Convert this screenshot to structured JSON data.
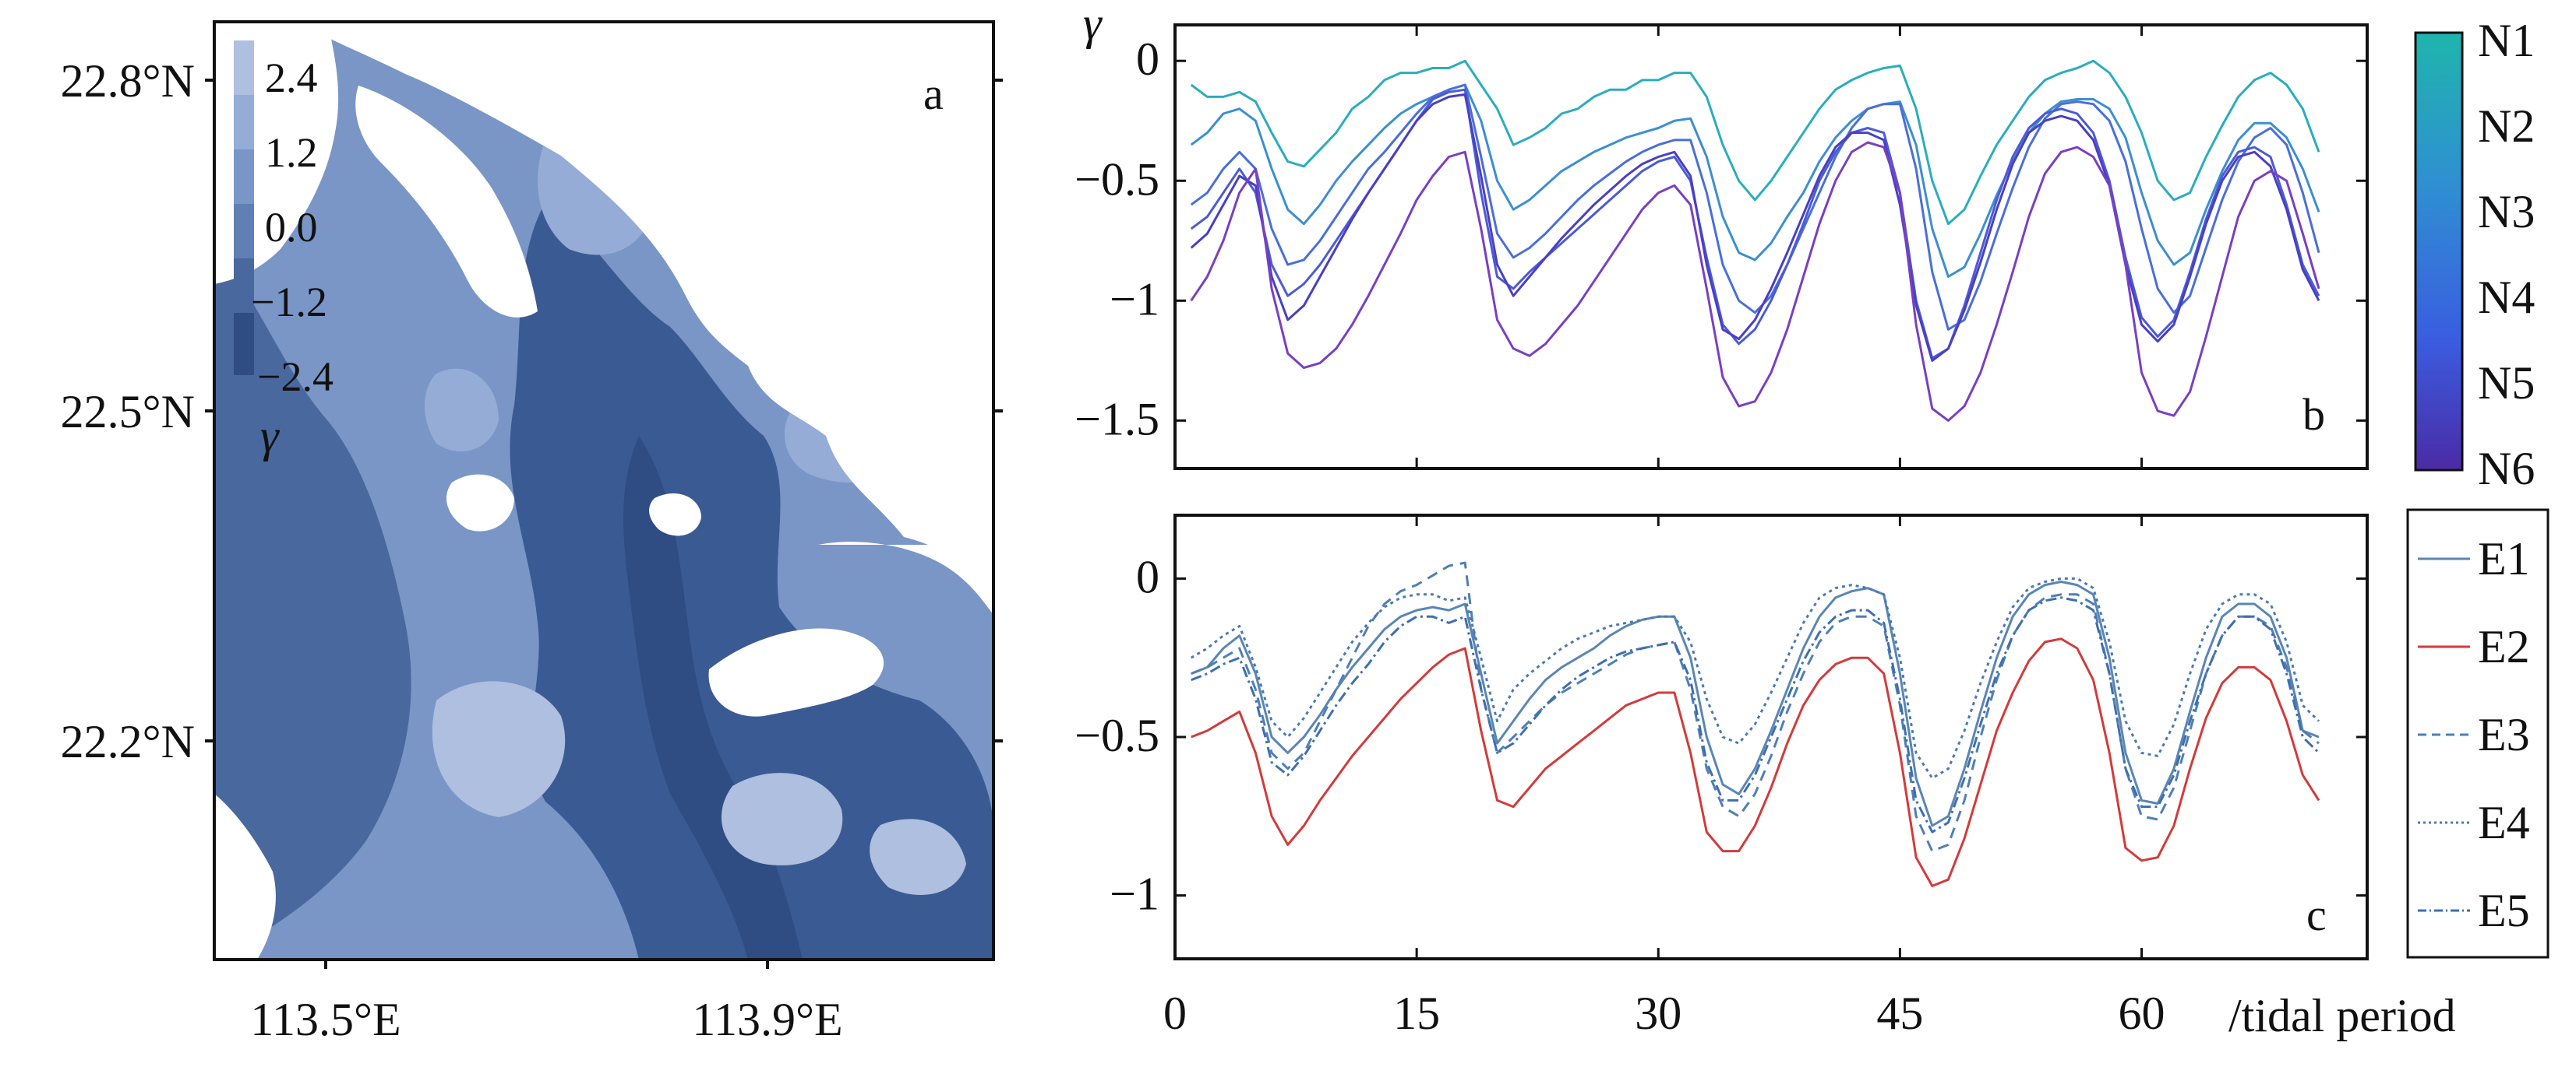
{
  "chart_data": [
    {
      "panel": "a",
      "type": "heatmap",
      "title": "",
      "x_ticks": [
        "113.5°E",
        "113.9°E"
      ],
      "y_ticks": [
        "22.8°N",
        "22.5°N",
        "22.2°N"
      ],
      "colorbar": {
        "label": "γ",
        "ticks": [
          "2.4",
          "1.2",
          "0.0",
          "−1.2",
          "−2.4"
        ],
        "range": [
          -2.4,
          2.4
        ],
        "colors": [
          "#aebfdf",
          "#94acd6",
          "#7a96c6",
          "#5f7fb5",
          "#49689e",
          "#2f4d82"
        ]
      },
      "colors": {
        "land": "#ffffff",
        "shallow": "#aebfdf",
        "mid": "#6f8dc2",
        "deep": "#3a5a93"
      }
    },
    {
      "panel": "b",
      "type": "line",
      "ylabel": "γ",
      "x_ticks": [
        "0",
        "15",
        "30",
        "45",
        "60"
      ],
      "xlim": [
        0,
        74
      ],
      "ylim": [
        -1.7,
        0.15
      ],
      "y_ticks": [
        {
          "value": 0,
          "label": "0"
        },
        {
          "value": -0.5,
          "label": "−0.5"
        },
        {
          "value": -1,
          "label": "−1"
        },
        {
          "value": -1.5,
          "label": "−1.5"
        }
      ],
      "colorbar": {
        "labels": [
          "N1",
          "N2",
          "N3",
          "N4",
          "N5",
          "N6"
        ],
        "top_color": "#1fb0b2",
        "bottom_color": "#4b2ba5"
      },
      "series": [
        {
          "name": "N1",
          "color": "#2aadbd",
          "values": [
            -0.1,
            -0.15,
            -0.15,
            -0.13,
            -0.17,
            -0.3,
            -0.42,
            -0.44,
            -0.37,
            -0.3,
            -0.2,
            -0.15,
            -0.08,
            -0.05,
            -0.05,
            -0.03,
            -0.03,
            0.0,
            -0.1,
            -0.2,
            -0.35,
            -0.32,
            -0.28,
            -0.22,
            -0.2,
            -0.15,
            -0.12,
            -0.12,
            -0.08,
            -0.08,
            -0.05,
            -0.05,
            -0.15,
            -0.35,
            -0.5,
            -0.58,
            -0.5,
            -0.4,
            -0.3,
            -0.2,
            -0.12,
            -0.08,
            -0.05,
            -0.03,
            -0.02,
            -0.2,
            -0.5,
            -0.68,
            -0.62,
            -0.48,
            -0.35,
            -0.25,
            -0.15,
            -0.08,
            -0.05,
            -0.03,
            0.0,
            -0.05,
            -0.15,
            -0.3,
            -0.5,
            -0.58,
            -0.55,
            -0.4,
            -0.27,
            -0.15,
            -0.08,
            -0.05,
            -0.1,
            -0.2,
            -0.38
          ]
        },
        {
          "name": "N2",
          "color": "#3c8fd0",
          "values": [
            -0.35,
            -0.3,
            -0.22,
            -0.2,
            -0.25,
            -0.45,
            -0.62,
            -0.68,
            -0.6,
            -0.5,
            -0.42,
            -0.35,
            -0.28,
            -0.22,
            -0.18,
            -0.15,
            -0.12,
            -0.1,
            -0.25,
            -0.5,
            -0.62,
            -0.58,
            -0.52,
            -0.46,
            -0.42,
            -0.38,
            -0.35,
            -0.32,
            -0.3,
            -0.28,
            -0.25,
            -0.24,
            -0.4,
            -0.65,
            -0.8,
            -0.83,
            -0.76,
            -0.65,
            -0.55,
            -0.42,
            -0.32,
            -0.25,
            -0.2,
            -0.18,
            -0.17,
            -0.35,
            -0.7,
            -0.9,
            -0.86,
            -0.72,
            -0.56,
            -0.42,
            -0.3,
            -0.22,
            -0.17,
            -0.16,
            -0.16,
            -0.2,
            -0.32,
            -0.55,
            -0.75,
            -0.85,
            -0.8,
            -0.62,
            -0.46,
            -0.33,
            -0.26,
            -0.26,
            -0.32,
            -0.45,
            -0.63
          ]
        },
        {
          "name": "N3",
          "color": "#4a6fd8",
          "values": [
            -0.6,
            -0.55,
            -0.45,
            -0.38,
            -0.45,
            -0.7,
            -0.85,
            -0.83,
            -0.75,
            -0.65,
            -0.55,
            -0.45,
            -0.38,
            -0.3,
            -0.22,
            -0.15,
            -0.12,
            -0.1,
            -0.4,
            -0.72,
            -0.82,
            -0.78,
            -0.72,
            -0.65,
            -0.58,
            -0.52,
            -0.47,
            -0.42,
            -0.38,
            -0.35,
            -0.33,
            -0.33,
            -0.55,
            -0.85,
            -1.0,
            -1.05,
            -0.98,
            -0.85,
            -0.7,
            -0.55,
            -0.4,
            -0.28,
            -0.2,
            -0.18,
            -0.18,
            -0.45,
            -0.88,
            -1.12,
            -1.08,
            -0.92,
            -0.72,
            -0.53,
            -0.36,
            -0.24,
            -0.18,
            -0.17,
            -0.18,
            -0.25,
            -0.42,
            -0.7,
            -0.95,
            -1.05,
            -0.98,
            -0.78,
            -0.58,
            -0.42,
            -0.32,
            -0.28,
            -0.35,
            -0.55,
            -0.8
          ]
        },
        {
          "name": "N4",
          "color": "#4b5bd6",
          "values": [
            -0.7,
            -0.65,
            -0.55,
            -0.45,
            -0.55,
            -0.85,
            -0.98,
            -0.93,
            -0.85,
            -0.75,
            -0.65,
            -0.55,
            -0.45,
            -0.35,
            -0.25,
            -0.16,
            -0.13,
            -0.12,
            -0.55,
            -0.9,
            -0.95,
            -0.88,
            -0.82,
            -0.76,
            -0.7,
            -0.64,
            -0.58,
            -0.52,
            -0.46,
            -0.42,
            -0.4,
            -0.5,
            -0.82,
            -1.1,
            -1.18,
            -1.12,
            -1.0,
            -0.85,
            -0.68,
            -0.5,
            -0.38,
            -0.3,
            -0.28,
            -0.3,
            -0.55,
            -1.0,
            -1.24,
            -1.2,
            -1.02,
            -0.8,
            -0.58,
            -0.4,
            -0.28,
            -0.22,
            -0.2,
            -0.22,
            -0.3,
            -0.5,
            -0.82,
            -1.07,
            -1.15,
            -1.08,
            -0.88,
            -0.66,
            -0.48,
            -0.38,
            -0.36,
            -0.4,
            -0.6,
            -0.85,
            -0.98
          ]
        },
        {
          "name": "N5",
          "color": "#4a3fc4",
          "values": [
            -0.78,
            -0.72,
            -0.6,
            -0.48,
            -0.52,
            -0.9,
            -1.08,
            -1.02,
            -0.9,
            -0.78,
            -0.66,
            -0.55,
            -0.45,
            -0.35,
            -0.25,
            -0.18,
            -0.15,
            -0.14,
            -0.48,
            -0.85,
            -0.98,
            -0.9,
            -0.82,
            -0.74,
            -0.67,
            -0.6,
            -0.54,
            -0.48,
            -0.43,
            -0.4,
            -0.38,
            -0.48,
            -0.85,
            -1.12,
            -1.16,
            -1.08,
            -0.95,
            -0.8,
            -0.64,
            -0.48,
            -0.36,
            -0.3,
            -0.3,
            -0.33,
            -0.6,
            -1.02,
            -1.25,
            -1.2,
            -1.04,
            -0.84,
            -0.62,
            -0.43,
            -0.3,
            -0.25,
            -0.23,
            -0.25,
            -0.33,
            -0.52,
            -0.85,
            -1.1,
            -1.17,
            -1.1,
            -0.9,
            -0.68,
            -0.5,
            -0.4,
            -0.38,
            -0.44,
            -0.62,
            -0.87,
            -1.0
          ]
        },
        {
          "name": "N6",
          "color": "#7a3fc2",
          "values": [
            -1.0,
            -0.9,
            -0.75,
            -0.55,
            -0.45,
            -0.95,
            -1.22,
            -1.28,
            -1.26,
            -1.2,
            -1.1,
            -0.98,
            -0.85,
            -0.72,
            -0.58,
            -0.48,
            -0.4,
            -0.38,
            -0.7,
            -1.08,
            -1.2,
            -1.23,
            -1.18,
            -1.1,
            -1.02,
            -0.92,
            -0.82,
            -0.72,
            -0.62,
            -0.55,
            -0.52,
            -0.6,
            -0.95,
            -1.32,
            -1.44,
            -1.42,
            -1.3,
            -1.12,
            -0.9,
            -0.68,
            -0.5,
            -0.38,
            -0.34,
            -0.36,
            -0.55,
            -1.1,
            -1.45,
            -1.5,
            -1.44,
            -1.3,
            -1.1,
            -0.88,
            -0.65,
            -0.47,
            -0.38,
            -0.36,
            -0.4,
            -0.52,
            -0.85,
            -1.3,
            -1.46,
            -1.48,
            -1.38,
            -1.15,
            -0.9,
            -0.65,
            -0.5,
            -0.46,
            -0.5,
            -0.72,
            -0.95
          ]
        }
      ],
      "panel_letter": "b"
    },
    {
      "panel": "c",
      "type": "line",
      "x_ticks": [
        "0",
        "15",
        "30",
        "45",
        "60"
      ],
      "xlabel": "/tidal period",
      "xlim": [
        0,
        74
      ],
      "ylim": [
        -1.2,
        0.2
      ],
      "y_ticks": [
        {
          "value": 0,
          "label": "0"
        },
        {
          "value": -0.5,
          "label": "−0.5"
        },
        {
          "value": -1,
          "label": "−1"
        }
      ],
      "legend": [
        "E1",
        "E2",
        "E3",
        "E4",
        "E5"
      ],
      "series": [
        {
          "name": "E1",
          "color": "#5a86b4",
          "dash": "",
          "values": [
            -0.3,
            -0.28,
            -0.22,
            -0.18,
            -0.3,
            -0.5,
            -0.55,
            -0.5,
            -0.43,
            -0.35,
            -0.28,
            -0.22,
            -0.16,
            -0.12,
            -0.1,
            -0.09,
            -0.1,
            -0.08,
            -0.3,
            -0.52,
            -0.45,
            -0.38,
            -0.32,
            -0.28,
            -0.25,
            -0.22,
            -0.18,
            -0.15,
            -0.13,
            -0.12,
            -0.12,
            -0.25,
            -0.5,
            -0.65,
            -0.68,
            -0.6,
            -0.48,
            -0.35,
            -0.22,
            -0.12,
            -0.06,
            -0.04,
            -0.03,
            -0.05,
            -0.3,
            -0.63,
            -0.78,
            -0.75,
            -0.6,
            -0.42,
            -0.25,
            -0.12,
            -0.05,
            -0.02,
            -0.01,
            -0.02,
            -0.05,
            -0.25,
            -0.55,
            -0.7,
            -0.71,
            -0.6,
            -0.42,
            -0.25,
            -0.12,
            -0.08,
            -0.08,
            -0.12,
            -0.25,
            -0.48,
            -0.5
          ]
        },
        {
          "name": "E2",
          "color": "#d23b3b",
          "dash": "",
          "values": [
            -0.5,
            -0.48,
            -0.45,
            -0.42,
            -0.55,
            -0.75,
            -0.84,
            -0.78,
            -0.7,
            -0.63,
            -0.56,
            -0.5,
            -0.44,
            -0.38,
            -0.33,
            -0.28,
            -0.24,
            -0.22,
            -0.48,
            -0.7,
            -0.72,
            -0.66,
            -0.6,
            -0.56,
            -0.52,
            -0.48,
            -0.44,
            -0.4,
            -0.38,
            -0.36,
            -0.36,
            -0.55,
            -0.8,
            -0.86,
            -0.86,
            -0.78,
            -0.66,
            -0.52,
            -0.4,
            -0.32,
            -0.27,
            -0.25,
            -0.25,
            -0.3,
            -0.55,
            -0.88,
            -0.97,
            -0.95,
            -0.82,
            -0.65,
            -0.48,
            -0.36,
            -0.26,
            -0.2,
            -0.19,
            -0.22,
            -0.32,
            -0.55,
            -0.85,
            -0.89,
            -0.88,
            -0.78,
            -0.6,
            -0.44,
            -0.33,
            -0.28,
            -0.28,
            -0.32,
            -0.45,
            -0.62,
            -0.7
          ]
        },
        {
          "name": "E3",
          "color": "#4f7fb5",
          "dash": "14 9",
          "values": [
            -0.3,
            -0.28,
            -0.25,
            -0.22,
            -0.35,
            -0.55,
            -0.6,
            -0.55,
            -0.45,
            -0.35,
            -0.25,
            -0.15,
            -0.08,
            -0.04,
            -0.02,
            0.01,
            0.04,
            0.05,
            -0.35,
            -0.55,
            -0.5,
            -0.45,
            -0.4,
            -0.36,
            -0.33,
            -0.3,
            -0.27,
            -0.24,
            -0.22,
            -0.21,
            -0.2,
            -0.35,
            -0.6,
            -0.72,
            -0.75,
            -0.68,
            -0.56,
            -0.42,
            -0.3,
            -0.2,
            -0.14,
            -0.12,
            -0.12,
            -0.15,
            -0.4,
            -0.75,
            -0.86,
            -0.84,
            -0.7,
            -0.5,
            -0.32,
            -0.18,
            -0.1,
            -0.06,
            -0.05,
            -0.05,
            -0.08,
            -0.3,
            -0.6,
            -0.75,
            -0.76,
            -0.66,
            -0.48,
            -0.3,
            -0.18,
            -0.12,
            -0.12,
            -0.15,
            -0.28,
            -0.48,
            -0.52
          ]
        },
        {
          "name": "E4",
          "color": "#4a7ab3",
          "dash": "4 5",
          "values": [
            -0.25,
            -0.22,
            -0.18,
            -0.15,
            -0.28,
            -0.45,
            -0.5,
            -0.44,
            -0.36,
            -0.28,
            -0.2,
            -0.14,
            -0.09,
            -0.06,
            -0.05,
            -0.05,
            -0.07,
            -0.06,
            -0.25,
            -0.45,
            -0.35,
            -0.3,
            -0.26,
            -0.22,
            -0.19,
            -0.17,
            -0.15,
            -0.14,
            -0.13,
            -0.12,
            -0.12,
            -0.2,
            -0.38,
            -0.5,
            -0.52,
            -0.46,
            -0.36,
            -0.25,
            -0.14,
            -0.06,
            -0.03,
            -0.02,
            -0.03,
            -0.05,
            -0.25,
            -0.55,
            -0.63,
            -0.6,
            -0.48,
            -0.33,
            -0.2,
            -0.09,
            -0.03,
            -0.01,
            0.0,
            0.0,
            -0.03,
            -0.2,
            -0.45,
            -0.55,
            -0.56,
            -0.46,
            -0.3,
            -0.16,
            -0.08,
            -0.05,
            -0.05,
            -0.08,
            -0.2,
            -0.4,
            -0.45
          ]
        },
        {
          "name": "E5",
          "color": "#3f6fae",
          "dash": "14 5 3 5",
          "values": [
            -0.32,
            -0.3,
            -0.27,
            -0.25,
            -0.38,
            -0.58,
            -0.62,
            -0.56,
            -0.48,
            -0.4,
            -0.33,
            -0.27,
            -0.2,
            -0.15,
            -0.12,
            -0.12,
            -0.14,
            -0.12,
            -0.35,
            -0.55,
            -0.52,
            -0.46,
            -0.4,
            -0.35,
            -0.31,
            -0.28,
            -0.25,
            -0.23,
            -0.22,
            -0.21,
            -0.2,
            -0.32,
            -0.58,
            -0.7,
            -0.7,
            -0.62,
            -0.5,
            -0.38,
            -0.26,
            -0.17,
            -0.12,
            -0.1,
            -0.1,
            -0.14,
            -0.38,
            -0.7,
            -0.8,
            -0.77,
            -0.63,
            -0.46,
            -0.3,
            -0.18,
            -0.1,
            -0.07,
            -0.06,
            -0.07,
            -0.1,
            -0.3,
            -0.6,
            -0.72,
            -0.72,
            -0.62,
            -0.45,
            -0.3,
            -0.18,
            -0.12,
            -0.12,
            -0.16,
            -0.3,
            -0.5,
            -0.55
          ]
        }
      ],
      "panel_letter": "c"
    }
  ]
}
